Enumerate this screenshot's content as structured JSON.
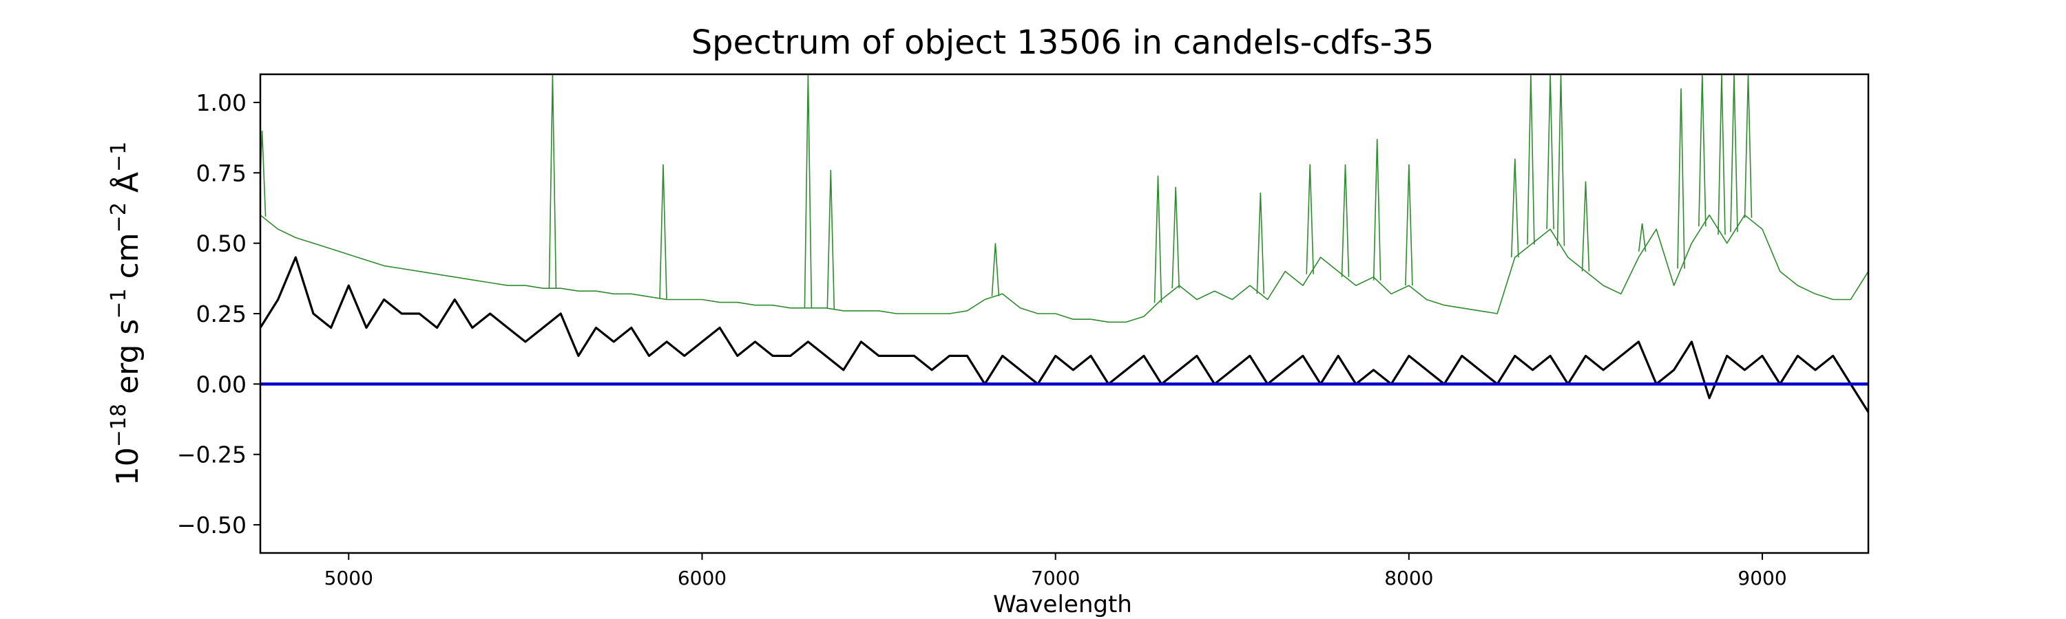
{
  "chart_data": {
    "type": "line",
    "title": "Spectrum of object 13506 in candels-cdfs-35",
    "xlabel": "Wavelength",
    "ylabel": {
      "base": "10",
      "exp": "−18",
      "pre": " erg s",
      "s_exp": "−1",
      "mid": " cm",
      "cm_exp": "−2",
      "unit": " Å",
      "a_exp": "−1"
    },
    "xlim": [
      4750,
      9300
    ],
    "ylim": [
      -0.6,
      1.1
    ],
    "xticks": [
      5000,
      6000,
      7000,
      8000,
      9000
    ],
    "xtick_labels": [
      "5000",
      "6000",
      "7000",
      "8000",
      "9000"
    ],
    "yticks": [
      -0.5,
      -0.25,
      0.0,
      0.25,
      0.5,
      0.75,
      1.0
    ],
    "ytick_labels": [
      "−0.50",
      "−0.25",
      "0.00",
      "0.25",
      "0.50",
      "0.75",
      "1.00"
    ],
    "grid": false,
    "series": [
      {
        "role": "flux",
        "color": "#000000",
        "x": [
          4750,
          4800,
          4850,
          4900,
          4950,
          5000,
          5050,
          5100,
          5150,
          5200,
          5250,
          5300,
          5350,
          5400,
          5450,
          5500,
          5550,
          5600,
          5650,
          5700,
          5750,
          5800,
          5850,
          5900,
          5950,
          6000,
          6050,
          6100,
          6150,
          6200,
          6250,
          6300,
          6350,
          6400,
          6450,
          6500,
          6550,
          6600,
          6650,
          6700,
          6750,
          6800,
          6850,
          6900,
          6950,
          7000,
          7050,
          7100,
          7150,
          7200,
          7250,
          7300,
          7350,
          7400,
          7450,
          7500,
          7550,
          7600,
          7650,
          7700,
          7750,
          7800,
          7850,
          7900,
          7950,
          8000,
          8050,
          8100,
          8150,
          8200,
          8250,
          8300,
          8350,
          8400,
          8450,
          8500,
          8550,
          8600,
          8650,
          8700,
          8750,
          8800,
          8850,
          8900,
          8950,
          9000,
          9050,
          9100,
          9150,
          9200,
          9250,
          9300
        ],
        "y": [
          0.2,
          0.3,
          0.45,
          0.25,
          0.2,
          0.35,
          0.2,
          0.3,
          0.25,
          0.25,
          0.2,
          0.3,
          0.2,
          0.25,
          0.2,
          0.15,
          0.2,
          0.25,
          0.1,
          0.2,
          0.15,
          0.2,
          0.1,
          0.15,
          0.1,
          0.15,
          0.2,
          0.1,
          0.15,
          0.1,
          0.1,
          0.15,
          0.1,
          0.05,
          0.15,
          0.1,
          0.1,
          0.1,
          0.05,
          0.1,
          0.1,
          0.0,
          0.1,
          0.05,
          0.0,
          0.1,
          0.05,
          0.1,
          0.0,
          0.05,
          0.1,
          0.0,
          0.05,
          0.1,
          0.0,
          0.05,
          0.1,
          0.0,
          0.05,
          0.1,
          0.0,
          0.1,
          0.0,
          0.05,
          0.0,
          0.1,
          0.05,
          0.0,
          0.1,
          0.05,
          0.0,
          0.1,
          0.05,
          0.1,
          0.0,
          0.1,
          0.05,
          0.1,
          0.15,
          0.0,
          0.05,
          0.15,
          -0.05,
          0.1,
          0.05,
          0.1,
          0.0,
          0.1,
          0.05,
          0.1,
          0.0,
          -0.1
        ]
      },
      {
        "role": "error",
        "color": "#2e8b2e",
        "x": [
          4750,
          4800,
          4850,
          4900,
          4950,
          5000,
          5050,
          5100,
          5150,
          5200,
          5250,
          5300,
          5350,
          5400,
          5450,
          5500,
          5550,
          5600,
          5650,
          5700,
          5750,
          5800,
          5850,
          5900,
          5950,
          6000,
          6050,
          6100,
          6150,
          6200,
          6250,
          6300,
          6350,
          6400,
          6450,
          6500,
          6550,
          6600,
          6650,
          6700,
          6750,
          6800,
          6850,
          6900,
          6950,
          7000,
          7050,
          7100,
          7150,
          7200,
          7250,
          7300,
          7350,
          7400,
          7450,
          7500,
          7550,
          7600,
          7650,
          7700,
          7750,
          7800,
          7850,
          7900,
          7950,
          8000,
          8050,
          8100,
          8150,
          8200,
          8250,
          8300,
          8350,
          8400,
          8450,
          8500,
          8550,
          8600,
          8650,
          8700,
          8750,
          8800,
          8850,
          8900,
          8950,
          9000,
          9050,
          9100,
          9150,
          9200,
          9250,
          9300
        ],
        "y": [
          0.6,
          0.55,
          0.52,
          0.5,
          0.48,
          0.46,
          0.44,
          0.42,
          0.41,
          0.4,
          0.39,
          0.38,
          0.37,
          0.36,
          0.35,
          0.35,
          0.34,
          0.34,
          0.33,
          0.33,
          0.32,
          0.32,
          0.31,
          0.3,
          0.3,
          0.3,
          0.29,
          0.29,
          0.28,
          0.28,
          0.27,
          0.27,
          0.27,
          0.26,
          0.26,
          0.26,
          0.25,
          0.25,
          0.25,
          0.25,
          0.26,
          0.3,
          0.32,
          0.27,
          0.25,
          0.25,
          0.23,
          0.23,
          0.22,
          0.22,
          0.24,
          0.3,
          0.35,
          0.3,
          0.33,
          0.3,
          0.35,
          0.3,
          0.4,
          0.35,
          0.45,
          0.4,
          0.35,
          0.38,
          0.32,
          0.35,
          0.3,
          0.28,
          0.27,
          0.26,
          0.25,
          0.45,
          0.5,
          0.55,
          0.45,
          0.4,
          0.35,
          0.32,
          0.45,
          0.55,
          0.35,
          0.5,
          0.6,
          0.5,
          0.6,
          0.55,
          0.4,
          0.35,
          0.32,
          0.3,
          0.3,
          0.4
        ]
      },
      {
        "role": "model",
        "color": "#0000cc",
        "x": [
          4750,
          9300
        ],
        "y": [
          0.0,
          0.0
        ]
      }
    ],
    "emission_spikes": [
      {
        "x": 4755,
        "y": 0.9
      },
      {
        "x": 5577,
        "y": 1.1
      },
      {
        "x": 5890,
        "y": 0.78
      },
      {
        "x": 6300,
        "y": 1.1
      },
      {
        "x": 6364,
        "y": 0.76
      },
      {
        "x": 6830,
        "y": 0.5
      },
      {
        "x": 7290,
        "y": 0.74
      },
      {
        "x": 7340,
        "y": 0.7
      },
      {
        "x": 7580,
        "y": 0.68
      },
      {
        "x": 7720,
        "y": 0.78
      },
      {
        "x": 7820,
        "y": 0.78
      },
      {
        "x": 7910,
        "y": 0.87
      },
      {
        "x": 8000,
        "y": 0.78
      },
      {
        "x": 8300,
        "y": 0.8
      },
      {
        "x": 8345,
        "y": 1.1
      },
      {
        "x": 8400,
        "y": 1.1
      },
      {
        "x": 8430,
        "y": 1.1
      },
      {
        "x": 8500,
        "y": 0.72
      },
      {
        "x": 8660,
        "y": 0.57
      },
      {
        "x": 8770,
        "y": 1.05
      },
      {
        "x": 8830,
        "y": 1.1
      },
      {
        "x": 8885,
        "y": 1.1
      },
      {
        "x": 8920,
        "y": 1.1
      },
      {
        "x": 8960,
        "y": 1.1
      }
    ]
  }
}
